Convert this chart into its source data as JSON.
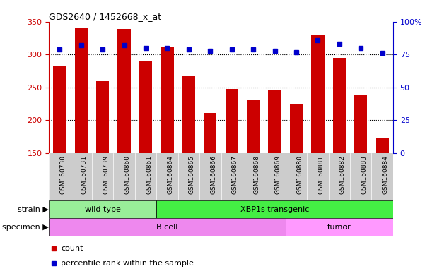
{
  "title": "GDS2640 / 1452668_x_at",
  "samples": [
    "GSM160730",
    "GSM160731",
    "GSM160739",
    "GSM160860",
    "GSM160861",
    "GSM160864",
    "GSM160865",
    "GSM160866",
    "GSM160867",
    "GSM160868",
    "GSM160869",
    "GSM160880",
    "GSM160881",
    "GSM160882",
    "GSM160883",
    "GSM160884"
  ],
  "counts": [
    283,
    340,
    260,
    339,
    291,
    311,
    267,
    211,
    248,
    231,
    247,
    224,
    330,
    295,
    239,
    172
  ],
  "percentiles": [
    79,
    82,
    79,
    82,
    80,
    80,
    79,
    78,
    79,
    79,
    78,
    77,
    86,
    83,
    80,
    76
  ],
  "ylim_left": [
    150,
    350
  ],
  "ylim_right": [
    0,
    100
  ],
  "yticks_left": [
    150,
    200,
    250,
    300,
    350
  ],
  "yticks_right": [
    0,
    25,
    50,
    75,
    100
  ],
  "bar_color": "#cc0000",
  "dot_color": "#0000cc",
  "strain_groups": [
    {
      "label": "wild type",
      "start": 0,
      "end": 5,
      "color": "#99ee99"
    },
    {
      "label": "XBP1s transgenic",
      "start": 5,
      "end": 16,
      "color": "#44ee44"
    }
  ],
  "specimen_groups": [
    {
      "label": "B cell",
      "start": 0,
      "end": 11,
      "color": "#ee88ee"
    },
    {
      "label": "tumor",
      "start": 11,
      "end": 16,
      "color": "#ff99ff"
    }
  ],
  "legend_count_label": "count",
  "legend_pct_label": "percentile rank within the sample",
  "xlabel_strain": "strain",
  "xlabel_specimen": "specimen",
  "tick_bg_color": "#cccccc",
  "spine_color_left": "#cc0000",
  "spine_color_right": "#0000cc"
}
